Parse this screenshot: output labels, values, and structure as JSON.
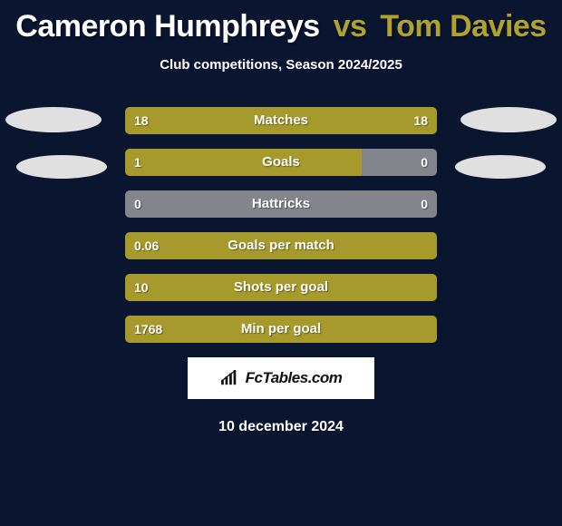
{
  "header": {
    "player1": "Cameron Humphreys",
    "vs": "vs",
    "player2": "Tom Davies",
    "subtitle": "Club competitions, Season 2024/2025"
  },
  "colors": {
    "left": "#a69a2c",
    "right": "#a69a2c",
    "neutral": "#83858c",
    "bg": "#0a1530"
  },
  "rows": [
    {
      "label": "Matches",
      "left": "18",
      "right": "18",
      "left_pct": 50,
      "right_pct": 50,
      "left_color": "#a69a2c",
      "right_color": "#a69a2c"
    },
    {
      "label": "Goals",
      "left": "1",
      "right": "0",
      "left_pct": 76,
      "right_pct": 24,
      "left_color": "#a69a2c",
      "right_color": "#83858c"
    },
    {
      "label": "Hattricks",
      "left": "0",
      "right": "0",
      "left_pct": 100,
      "right_pct": 0,
      "left_color": "#83858c",
      "right_color": "#83858c"
    },
    {
      "label": "Goals per match",
      "left": "0.06",
      "right": "",
      "left_pct": 100,
      "right_pct": 0,
      "left_color": "#a69a2c",
      "right_color": "#a69a2c"
    },
    {
      "label": "Shots per goal",
      "left": "10",
      "right": "",
      "left_pct": 100,
      "right_pct": 0,
      "left_color": "#a69a2c",
      "right_color": "#a69a2c"
    },
    {
      "label": "Min per goal",
      "left": "1768",
      "right": "",
      "left_pct": 100,
      "right_pct": 0,
      "left_color": "#a69a2c",
      "right_color": "#a69a2c"
    }
  ],
  "badge": {
    "text": "FcTables.com"
  },
  "date": "10 december 2024"
}
